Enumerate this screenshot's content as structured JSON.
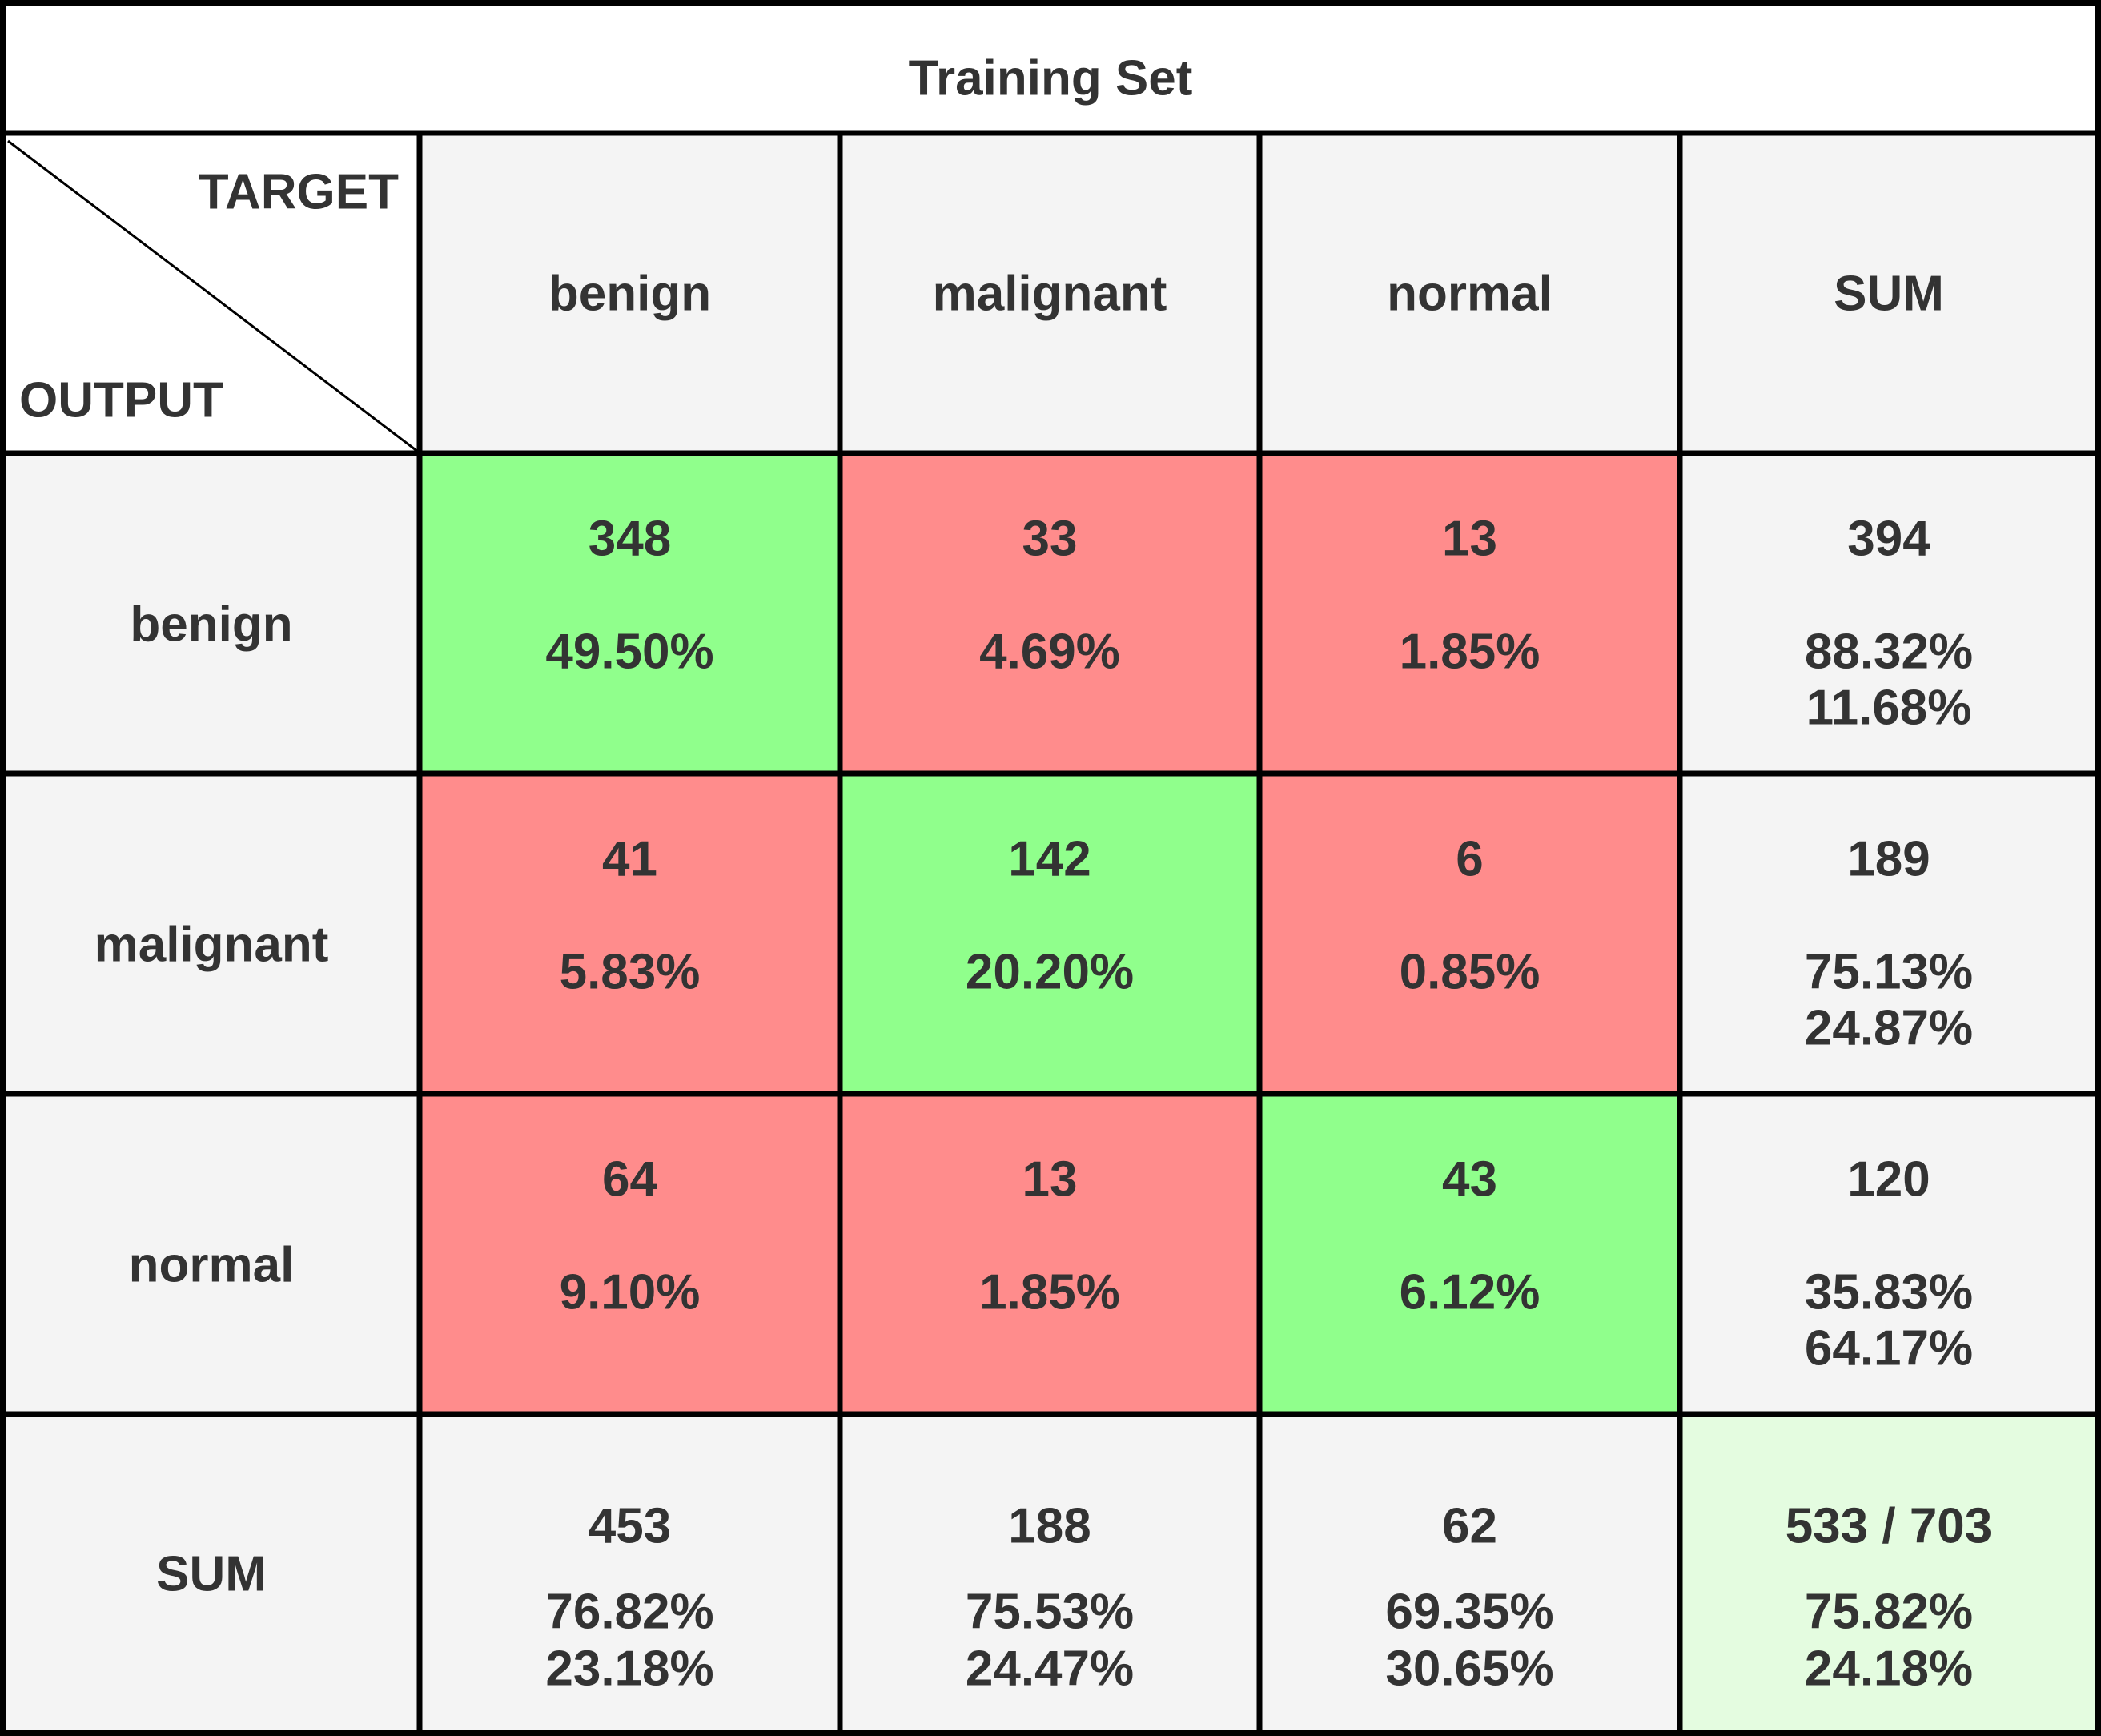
{
  "chart_data": {
    "type": "table",
    "title": "Training Set",
    "corner": {
      "top_label": "TARGET",
      "bottom_label": "OUTPUT"
    },
    "columns": [
      "benign",
      "malignant",
      "normal",
      "SUM"
    ],
    "rows": [
      {
        "label": "benign",
        "cells": [
          {
            "count": "348",
            "percent": "49.50%",
            "correct": true
          },
          {
            "count": "33",
            "percent": "4.69%",
            "correct": false
          },
          {
            "count": "13",
            "percent": "1.85%",
            "correct": false
          }
        ],
        "sum": {
          "count": "394",
          "good": "88.32%",
          "bad": "11.68%"
        }
      },
      {
        "label": "malignant",
        "cells": [
          {
            "count": "41",
            "percent": "5.83%",
            "correct": false
          },
          {
            "count": "142",
            "percent": "20.20%",
            "correct": true
          },
          {
            "count": "6",
            "percent": "0.85%",
            "correct": false
          }
        ],
        "sum": {
          "count": "189",
          "good": "75.13%",
          "bad": "24.87%"
        }
      },
      {
        "label": "normal",
        "cells": [
          {
            "count": "64",
            "percent": "9.10%",
            "correct": false
          },
          {
            "count": "13",
            "percent": "1.85%",
            "correct": false
          },
          {
            "count": "43",
            "percent": "6.12%",
            "correct": true
          }
        ],
        "sum": {
          "count": "120",
          "good": "35.83%",
          "bad": "64.17%"
        }
      }
    ],
    "sum_row": {
      "label": "SUM",
      "cells": [
        {
          "count": "453",
          "good": "76.82%",
          "bad": "23.18%"
        },
        {
          "count": "188",
          "good": "75.53%",
          "bad": "24.47%"
        },
        {
          "count": "62",
          "good": "69.35%",
          "bad": "30.65%"
        }
      ],
      "total": {
        "count": "533 / 703",
        "good": "75.82%",
        "bad": "24.18%"
      }
    }
  },
  "colors": {
    "correct_cell": "#90ff8c",
    "error_cell": "#ff8c8c",
    "header_cell": "#f4f4f4",
    "total_cell": "#e4fce0",
    "title_cell": "#ffffff",
    "good_text": "#138513",
    "bad_text": "#ee0a0a",
    "text": "#333333",
    "grid": "#000000"
  }
}
